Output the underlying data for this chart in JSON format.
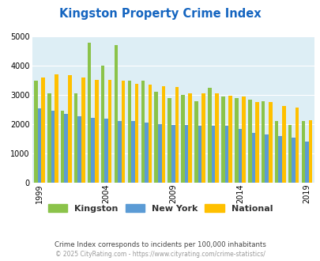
{
  "title": "Kingston Property Crime Index",
  "years": [
    1999,
    2000,
    2001,
    2002,
    2003,
    2004,
    2005,
    2006,
    2007,
    2008,
    2009,
    2010,
    2011,
    2012,
    2013,
    2014,
    2015,
    2016,
    2017,
    2018,
    2019
  ],
  "kingston": [
    3500,
    3050,
    2450,
    3050,
    4800,
    4000,
    4700,
    3500,
    3480,
    3100,
    2900,
    3000,
    2800,
    3250,
    2950,
    2900,
    2850,
    2800,
    2100,
    1980,
    2100
  ],
  "new_york": [
    2550,
    2450,
    2350,
    2280,
    2230,
    2200,
    2100,
    2100,
    2050,
    2000,
    1980,
    1970,
    1960,
    1950,
    1950,
    1850,
    1700,
    1650,
    1600,
    1550,
    1420
  ],
  "national": [
    3600,
    3700,
    3670,
    3610,
    3510,
    3510,
    3490,
    3380,
    3350,
    3300,
    3280,
    3060,
    3070,
    3050,
    2970,
    2940,
    2770,
    2750,
    2620,
    2560,
    2130
  ],
  "color_kingston": "#8bc34a",
  "color_new_york": "#5b9bd5",
  "color_national": "#ffc000",
  "bg_color": "#ddeef5",
  "outer_bg": "#ffffff",
  "yticks": [
    0,
    1000,
    2000,
    3000,
    4000,
    5000
  ],
  "x_tick_years": [
    1999,
    2004,
    2009,
    2014,
    2019
  ],
  "subtitle": "Crime Index corresponds to incidents per 100,000 inhabitants",
  "footer": "© 2025 CityRating.com - https://www.cityrating.com/crime-statistics/",
  "title_color": "#1565c0",
  "subtitle_color": "#444444",
  "footer_color": "#999999",
  "legend_kingston": "Kingston",
  "legend_new_york": "New York",
  "legend_national": "National"
}
